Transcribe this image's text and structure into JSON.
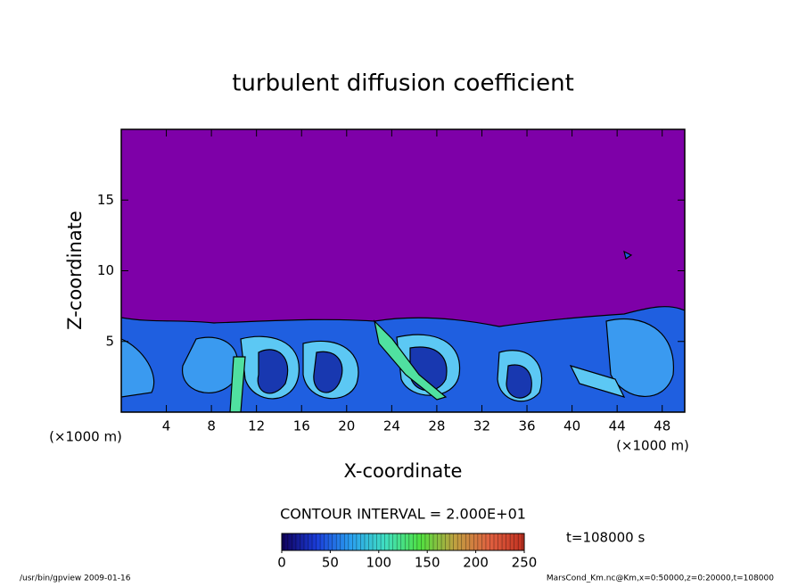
{
  "chart_data": {
    "type": "contour",
    "title": "turbulent diffusion coefficient",
    "xlabel": "X-coordinate",
    "ylabel": "Z-coordinate",
    "x_unit_label": "(×1000 m)",
    "xlim": [
      0,
      50
    ],
    "xticks": [
      4,
      8,
      12,
      16,
      20,
      24,
      28,
      32,
      36,
      40,
      44,
      48
    ],
    "ylim": [
      0,
      20
    ],
    "yticks": [
      5,
      10,
      15
    ],
    "background_color": "#7e00a8",
    "contour_interval_label": "CONTOUR INTERVAL = 2.000E+01",
    "time_label": "t=108000 s",
    "colorbar": {
      "lim": [
        0,
        250
      ],
      "ticks": [
        0,
        50,
        100,
        150,
        200,
        250
      ],
      "colors": [
        "#10005a",
        "#1a3cd8",
        "#2aa0f0",
        "#40e0c0",
        "#50e040",
        "#c0a040",
        "#e06040",
        "#c03020"
      ]
    },
    "footer_left": "/usr/bin/gpview   2009-01-16",
    "footer_right": "MarsCond_Km.nc@Km,x=0:50000,z=0:20000,t=108000"
  }
}
